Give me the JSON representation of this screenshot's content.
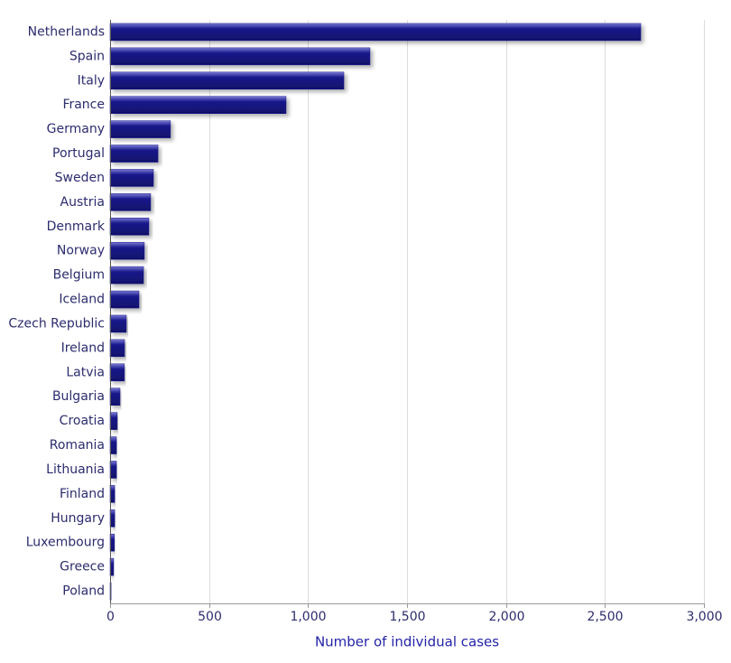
{
  "chart_data": {
    "type": "bar",
    "orientation": "horizontal",
    "x_label": "Number of individual cases",
    "categories": [
      "Netherlands",
      "Spain",
      "Italy",
      "France",
      "Germany",
      "Portugal",
      "Sweden",
      "Austria",
      "Denmark",
      "Norway",
      "Belgium",
      "Iceland",
      "Czech Republic",
      "Ireland",
      "Latvia",
      "Bulgaria",
      "Croatia",
      "Romania",
      "Lithuania",
      "Finland",
      "Hungary",
      "Luxembourg",
      "Greece",
      "Poland"
    ],
    "values": [
      2681,
      1313,
      1181,
      889,
      305,
      242,
      219,
      205,
      196,
      173,
      169,
      146,
      82,
      73,
      72,
      50,
      36,
      32,
      32,
      23,
      23,
      22,
      18,
      5
    ],
    "color": "#1a1a8c",
    "xlim": [
      0,
      3000
    ],
    "xticks": [
      0,
      500,
      {
        "value": 1000,
        "label": "1,000"
      },
      {
        "value": 1500,
        "label": "1,500"
      },
      {
        "value": 2000,
        "label": "2,000"
      },
      {
        "value": 2500,
        "label": "2,500"
      },
      {
        "value": 3000,
        "label": "3,000"
      }
    ],
    "grid": true
  }
}
